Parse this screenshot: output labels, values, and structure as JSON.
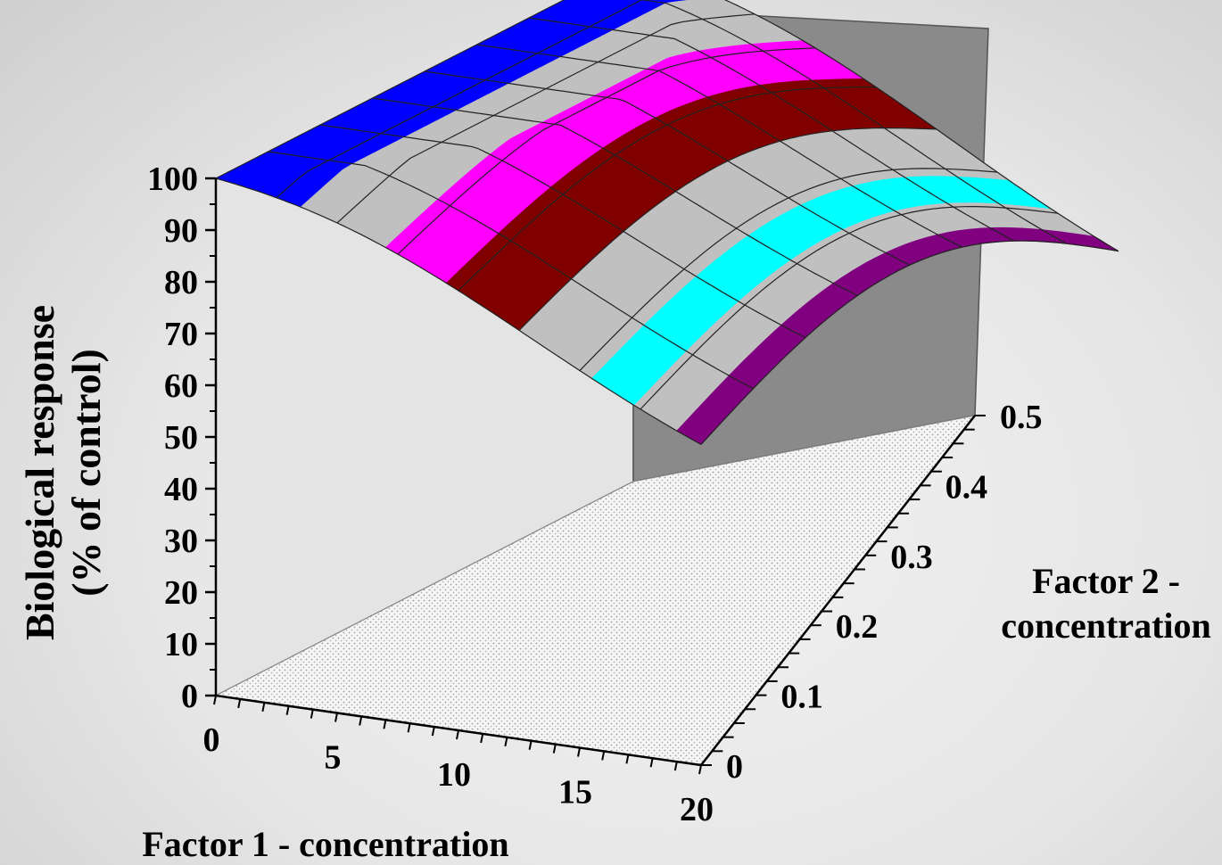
{
  "chart_data": {
    "type": "surface",
    "title": "",
    "zlabel": [
      "Biological response",
      "(% of control)"
    ],
    "xlabel": "Factor 1 - concentration",
    "ylabel": [
      "Factor 2 -",
      "concentration"
    ],
    "x_ticks": [
      "0",
      "5",
      "10",
      "15",
      "20"
    ],
    "y_ticks": [
      "0",
      "0.1",
      "0.2",
      "0.3",
      "0.4",
      "0.5"
    ],
    "z_ticks": [
      "0",
      "10",
      "20",
      "30",
      "40",
      "50",
      "60",
      "70",
      "80",
      "90",
      "100"
    ],
    "xlim": [
      0,
      20
    ],
    "ylim": [
      0,
      0.5
    ],
    "zlim": [
      0,
      100
    ],
    "grid": true,
    "color_bands": [
      {
        "color": "#0000ff"
      },
      {
        "color": "#c0c0c0"
      },
      {
        "color": "#ff00ff"
      },
      {
        "color": "#800000"
      },
      {
        "color": "#c0c0c0"
      },
      {
        "color": "#00ffff"
      },
      {
        "color": "#c0c0c0"
      },
      {
        "color": "#800080"
      }
    ],
    "colors": {
      "back_wall_right": "#8a8a8a",
      "back_wall_left": "#e4e4e4",
      "floor": "#f4f4f4"
    }
  }
}
